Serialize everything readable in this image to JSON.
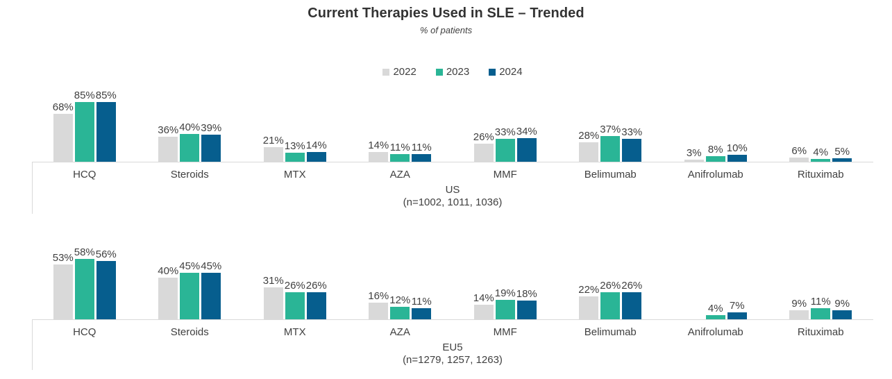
{
  "title": "Current Therapies Used in SLE – Trended",
  "subtitle": "% of patients",
  "legend": [
    "2022",
    "2023",
    "2024"
  ],
  "colors": {
    "2022": "#d9d9d9",
    "2023": "#2ab596",
    "2024": "#065e8e",
    "axis_line": "#d9d9d9",
    "label_text": "#404040",
    "title_text": "#333333"
  },
  "chart_data": {
    "type": "bar",
    "title": "Current Therapies Used in SLE – Trended",
    "subtitle": "% of patients",
    "value_suffix": "%",
    "legend_position": "top-center",
    "grid": false,
    "categories": [
      "HCQ",
      "Steroids",
      "MTX",
      "AZA",
      "MMF",
      "Belimumab",
      "Anifrolumab",
      "Rituximab"
    ],
    "panels": [
      {
        "name": "US",
        "n_label": "(n=1002, 1011, 1036)",
        "ylim": [
          0,
          90
        ],
        "series": [
          {
            "name": "2022",
            "values": [
              68,
              36,
              21,
              14,
              26,
              28,
              3,
              6
            ]
          },
          {
            "name": "2023",
            "values": [
              85,
              40,
              13,
              11,
              33,
              37,
              8,
              4
            ]
          },
          {
            "name": "2024",
            "values": [
              85,
              39,
              14,
              11,
              34,
              33,
              10,
              5
            ]
          }
        ]
      },
      {
        "name": "EU5",
        "n_label": "(n=1279, 1257, 1263)",
        "ylim": [
          0,
          60
        ],
        "series": [
          {
            "name": "2022",
            "values": [
              53,
              40,
              31,
              16,
              14,
              22,
              null,
              9
            ]
          },
          {
            "name": "2023",
            "values": [
              58,
              45,
              26,
              12,
              19,
              26,
              4,
              11
            ]
          },
          {
            "name": "2024",
            "values": [
              56,
              45,
              26,
              11,
              18,
              26,
              7,
              9
            ]
          }
        ]
      }
    ]
  }
}
